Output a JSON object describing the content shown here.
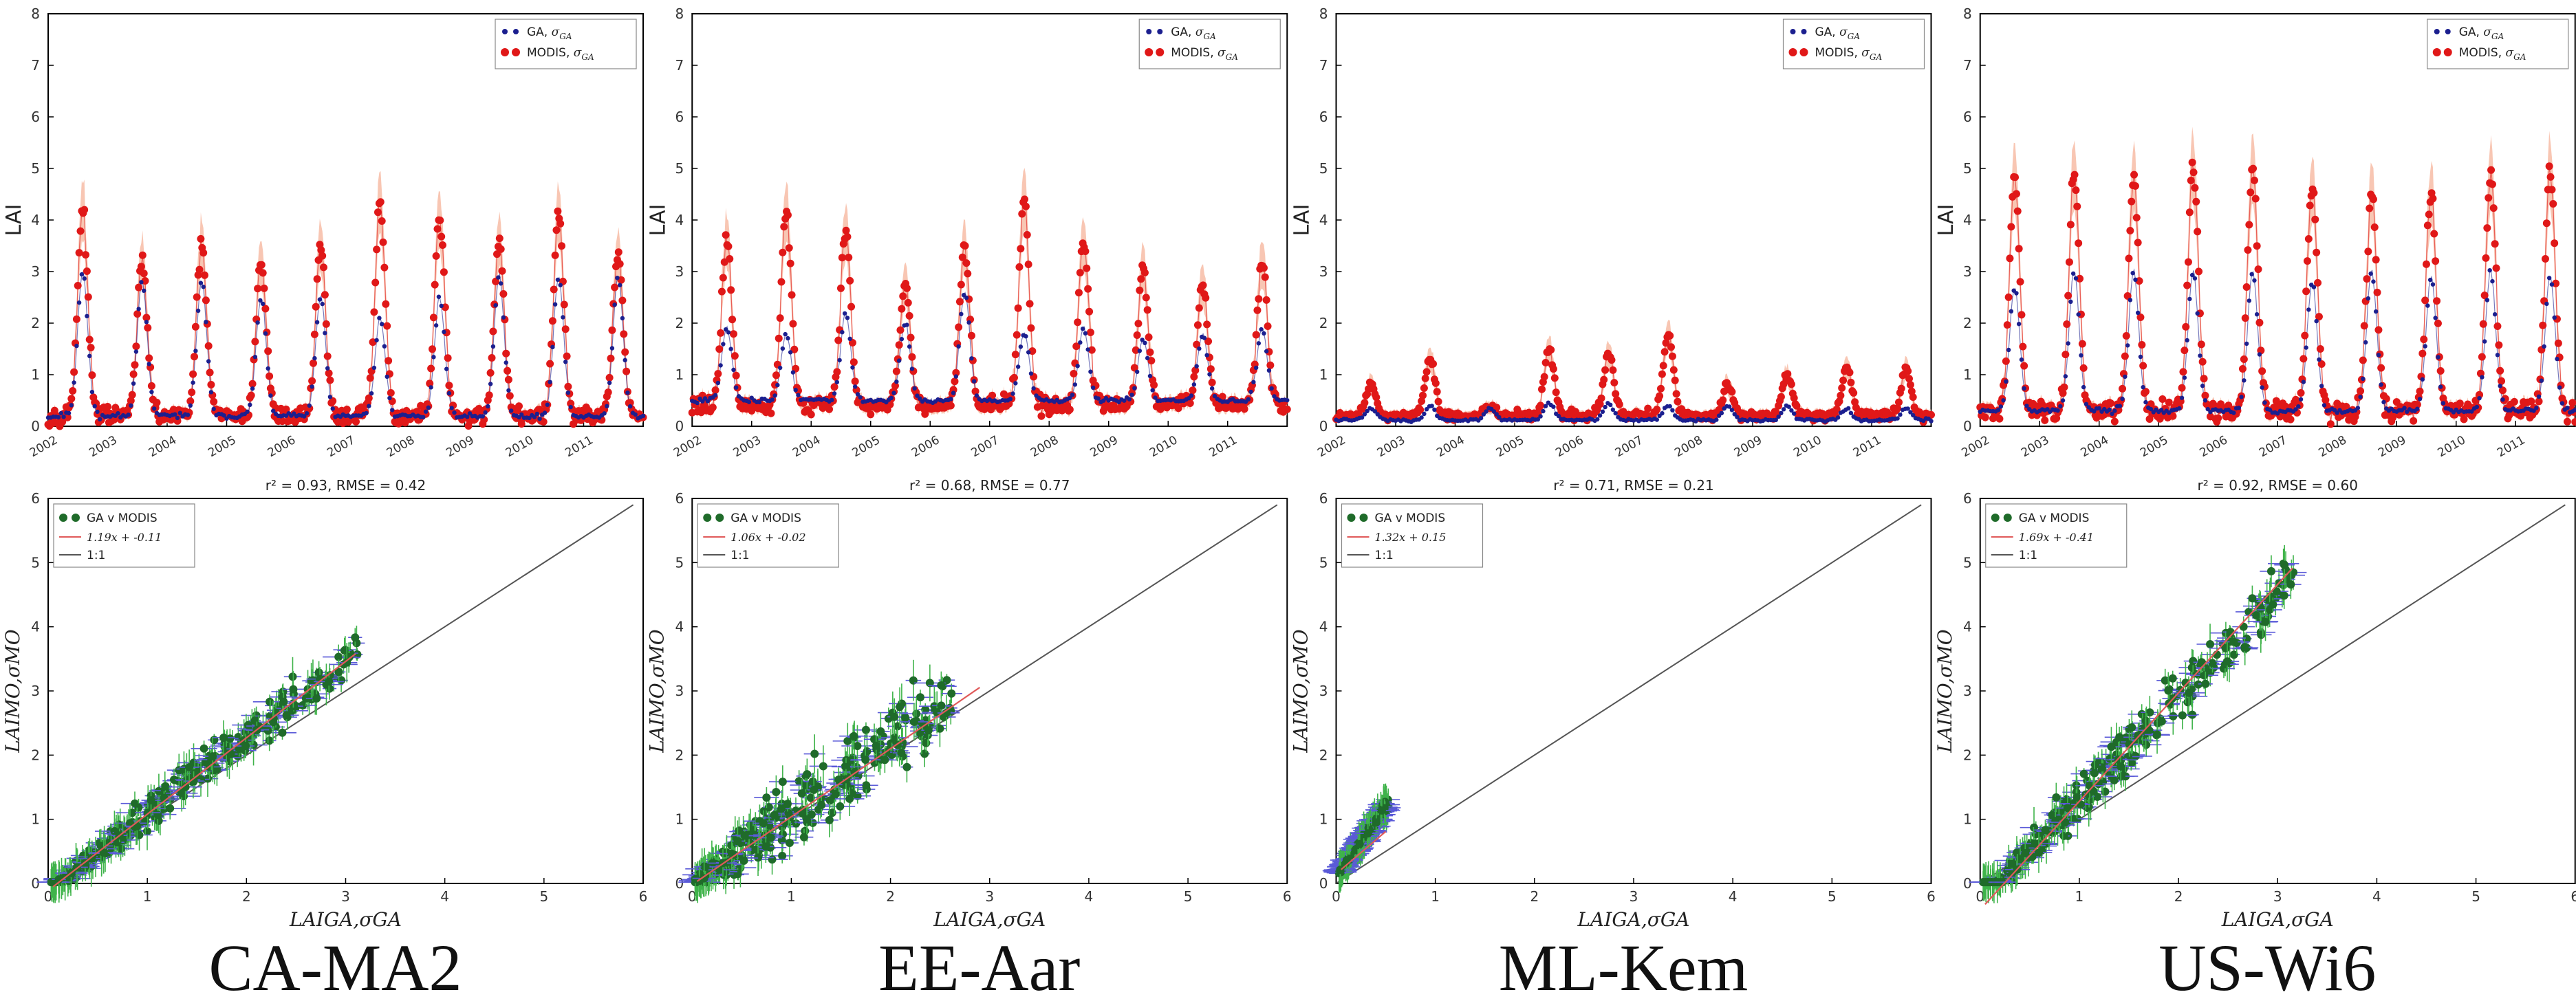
{
  "colors": {
    "ga": "#1b1f8f",
    "modis": "#e01818",
    "band": "#f6b39a",
    "scatter": "#1f6b2a",
    "xerr": "#5a5ad8",
    "yerr": "#3fb34a",
    "fit": "#e05a5a",
    "oneone": "#555555",
    "axis": "#000000"
  },
  "chart_data": [
    {
      "site": "CA-MA2",
      "timeseries": {
        "type": "line",
        "ylabel": "LAI",
        "ylim": [
          0,
          8
        ],
        "yticks": [
          0,
          1,
          2,
          3,
          4,
          5,
          6,
          7,
          8
        ],
        "xlim": [
          2002,
          2012
        ],
        "xtick_labels": [
          "2002",
          "2003",
          "2004",
          "2005",
          "2006",
          "2007",
          "2008",
          "2009",
          "2010",
          "2011"
        ],
        "series": [
          {
            "name": "GA, σGA",
            "legend_label": "GA, ",
            "legend_math": "σ",
            "legend_sub": "GA",
            "peaks": [
              3.0,
              2.8,
              2.8,
              2.5,
              2.5,
              2.1,
              2.5,
              2.9,
              2.9,
              2.9
            ],
            "base": 0.2
          },
          {
            "name": "MODIS, σGA",
            "legend_label": "MODIS, ",
            "legend_math": "σ",
            "legend_sub": "GA",
            "peaks": [
              4.2,
              3.2,
              3.5,
              3.2,
              3.5,
              4.3,
              4.0,
              3.6,
              4.1,
              3.3
            ],
            "base": 0.2
          }
        ]
      },
      "scatter": {
        "type": "scatter",
        "title": "r² = 0.93, RMSE = 0.42",
        "xlabel": "LAIGA,σGA",
        "ylabel": "LAIMO,σMO",
        "xlim": [
          0,
          6
        ],
        "ylim": [
          0,
          6
        ],
        "xticks": [
          0,
          1,
          2,
          3,
          4,
          5,
          6
        ],
        "yticks": [
          0,
          1,
          2,
          3,
          4,
          5,
          6
        ],
        "fit": {
          "slope": 1.19,
          "intercept": -0.11,
          "x_range": [
            0.05,
            3.1
          ]
        },
        "legend": [
          "GA v MODIS",
          "1.19x + -0.11",
          "1:1"
        ],
        "cloud": {
          "xmax": 3.1,
          "slope": 1.19,
          "intercept": -0.11,
          "noise": 0.45
        }
      }
    },
    {
      "site": "EE-Aar",
      "timeseries": {
        "type": "line",
        "ylabel": "LAI",
        "ylim": [
          0,
          8
        ],
        "yticks": [
          0,
          1,
          2,
          3,
          4,
          5,
          6,
          7,
          8
        ],
        "xlim": [
          2002,
          2012
        ],
        "xtick_labels": [
          "2002",
          "2003",
          "2004",
          "2005",
          "2006",
          "2007",
          "2008",
          "2009",
          "2010",
          "2011"
        ],
        "series": [
          {
            "name": "GA, σGA",
            "legend_label": "GA, ",
            "legend_math": "σ",
            "legend_sub": "GA",
            "peaks": [
              1.9,
              1.8,
              2.2,
              2.0,
              2.6,
              1.8,
              1.9,
              1.7,
              1.8,
              1.9
            ],
            "base": 0.5
          },
          {
            "name": "MODIS, σGA",
            "legend_label": "MODIS, ",
            "legend_math": "σ",
            "legend_sub": "GA",
            "peaks": [
              3.6,
              4.2,
              3.8,
              2.8,
              3.5,
              4.4,
              3.6,
              3.1,
              2.8,
              3.2
            ],
            "base": 0.4
          }
        ]
      },
      "scatter": {
        "type": "scatter",
        "title": "r² = 0.68, RMSE = 0.77",
        "xlabel": "LAIGA,σGA",
        "ylabel": "LAIMO,σMO",
        "xlim": [
          0,
          6
        ],
        "ylim": [
          0,
          6
        ],
        "xticks": [
          0,
          1,
          2,
          3,
          4,
          5,
          6
        ],
        "yticks": [
          0,
          1,
          2,
          3,
          4,
          5,
          6
        ],
        "fit": {
          "slope": 1.06,
          "intercept": -0.02,
          "x_range": [
            0.05,
            2.9
          ]
        },
        "legend": [
          "GA v MODIS",
          "1.06x + -0.02",
          "1:1"
        ],
        "cloud": {
          "xmax": 2.6,
          "slope": 1.1,
          "intercept": 0.0,
          "noise": 0.85
        }
      }
    },
    {
      "site": "ML-Kem",
      "timeseries": {
        "type": "line",
        "ylabel": "LAI",
        "ylim": [
          0,
          8
        ],
        "yticks": [
          0,
          1,
          2,
          3,
          4,
          5,
          6,
          7,
          8
        ],
        "xlim": [
          2002,
          2012
        ],
        "xtick_labels": [
          "2002",
          "2003",
          "2004",
          "2005",
          "2006",
          "2007",
          "2008",
          "2009",
          "2010",
          "2011"
        ],
        "series": [
          {
            "name": "GA, σGA",
            "legend_label": "GA, ",
            "legend_math": "σ",
            "legend_sub": "GA",
            "peaks": [
              0.35,
              0.4,
              0.35,
              0.45,
              0.45,
              0.4,
              0.4,
              0.4,
              0.35,
              0.35
            ],
            "base": 0.12
          },
          {
            "name": "MODIS, σGA",
            "legend_label": "MODIS, ",
            "legend_math": "σ",
            "legend_sub": "GA",
            "peaks": [
              0.8,
              1.3,
              0.4,
              1.5,
              1.4,
              1.8,
              0.8,
              1.0,
              1.1,
              1.1
            ],
            "base": 0.2
          }
        ]
      },
      "scatter": {
        "type": "scatter",
        "title": "r² = 0.71, RMSE = 0.21",
        "xlabel": "LAIGA,σGA",
        "ylabel": "LAIMO,σMO",
        "xlim": [
          0,
          6
        ],
        "ylim": [
          0,
          6
        ],
        "xticks": [
          0,
          1,
          2,
          3,
          4,
          5,
          6
        ],
        "yticks": [
          0,
          1,
          2,
          3,
          4,
          5,
          6
        ],
        "fit": {
          "slope": 1.32,
          "intercept": 0.15,
          "x_range": [
            0.05,
            0.5
          ]
        },
        "legend": [
          "GA v MODIS",
          "1.32x + 0.15",
          "1:1"
        ],
        "cloud": {
          "xmax": 0.5,
          "slope": 2.2,
          "intercept": 0.1,
          "noise": 0.25
        }
      }
    },
    {
      "site": "US-Wi6",
      "timeseries": {
        "type": "line",
        "ylabel": "LAI",
        "ylim": [
          0,
          8
        ],
        "yticks": [
          0,
          1,
          2,
          3,
          4,
          5,
          6,
          7,
          8
        ],
        "xlim": [
          2002,
          2012
        ],
        "xtick_labels": [
          "2002",
          "2003",
          "2004",
          "2005",
          "2006",
          "2007",
          "2008",
          "2009",
          "2010",
          "2011"
        ],
        "series": [
          {
            "name": "GA, σGA",
            "legend_label": "GA, ",
            "legend_math": "σ",
            "legend_sub": "GA",
            "peaks": [
              2.7,
              3.0,
              3.0,
              3.0,
              3.0,
              2.8,
              3.0,
              2.9,
              3.0,
              2.9
            ],
            "base": 0.3
          },
          {
            "name": "MODIS, σGA",
            "legend_label": "MODIS, ",
            "legend_math": "σ",
            "legend_sub": "GA",
            "peaks": [
              4.8,
              4.9,
              4.8,
              5.1,
              5.0,
              4.7,
              4.5,
              4.6,
              4.9,
              5.0
            ],
            "base": 0.3
          }
        ]
      },
      "scatter": {
        "type": "scatter",
        "title": "r² = 0.92, RMSE = 0.60",
        "xlabel": "LAIGA,σGA",
        "ylabel": "LAIMO,σMO",
        "xlim": [
          0,
          6
        ],
        "ylim": [
          0,
          6
        ],
        "xticks": [
          0,
          1,
          2,
          3,
          4,
          5,
          6
        ],
        "yticks": [
          0,
          1,
          2,
          3,
          4,
          5,
          6
        ],
        "fit": {
          "slope": 1.69,
          "intercept": -0.41,
          "x_range": [
            0.05,
            3.15
          ]
        },
        "legend": [
          "GA v MODIS",
          "1.69x + -0.41",
          "1:1"
        ],
        "cloud": {
          "xmax": 3.15,
          "slope": 1.6,
          "intercept": -0.3,
          "noise": 0.6
        }
      }
    }
  ]
}
